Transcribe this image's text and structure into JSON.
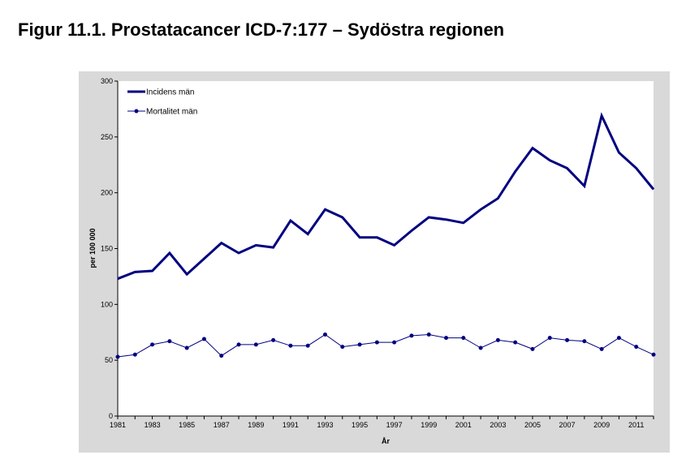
{
  "page": {
    "title": "Figur 11.1. Prostatacancer ICD-7:177 – Sydöstra regionen"
  },
  "chart_data": {
    "type": "line",
    "title": "",
    "xlabel": "År",
    "ylabel": "per 100 000",
    "ylim": [
      0,
      300
    ],
    "yticks": [
      0,
      50,
      100,
      150,
      200,
      250,
      300
    ],
    "xlim": [
      1981,
      2012
    ],
    "xticks": [
      1981,
      1983,
      1985,
      1987,
      1989,
      1991,
      1993,
      1995,
      1997,
      1999,
      2001,
      2003,
      2005,
      2007,
      2009,
      2011
    ],
    "grid": false,
    "legend_position": "top-left",
    "x": [
      1981,
      1982,
      1983,
      1984,
      1985,
      1986,
      1987,
      1988,
      1989,
      1990,
      1991,
      1992,
      1993,
      1994,
      1995,
      1996,
      1997,
      1998,
      1999,
      2000,
      2001,
      2002,
      2003,
      2004,
      2005,
      2006,
      2007,
      2008,
      2009,
      2010,
      2011,
      2012
    ],
    "series": [
      {
        "name": "Incidens män",
        "color": "#000080",
        "style": "thick-line",
        "values": [
          123,
          129,
          130,
          146,
          127,
          141,
          155,
          146,
          153,
          151,
          175,
          163,
          185,
          178,
          160,
          160,
          153,
          166,
          178,
          176,
          173,
          185,
          195,
          219,
          240,
          229,
          222,
          206,
          269,
          236,
          222,
          203
        ]
      },
      {
        "name": "Mortalitet män",
        "color": "#000080",
        "style": "thin-line-markers",
        "values": [
          53,
          55,
          64,
          67,
          61,
          69,
          54,
          64,
          64,
          68,
          63,
          63,
          73,
          62,
          64,
          66,
          66,
          72,
          73,
          70,
          70,
          61,
          68,
          66,
          60,
          70,
          68,
          67,
          60,
          70,
          62,
          55
        ]
      }
    ]
  }
}
